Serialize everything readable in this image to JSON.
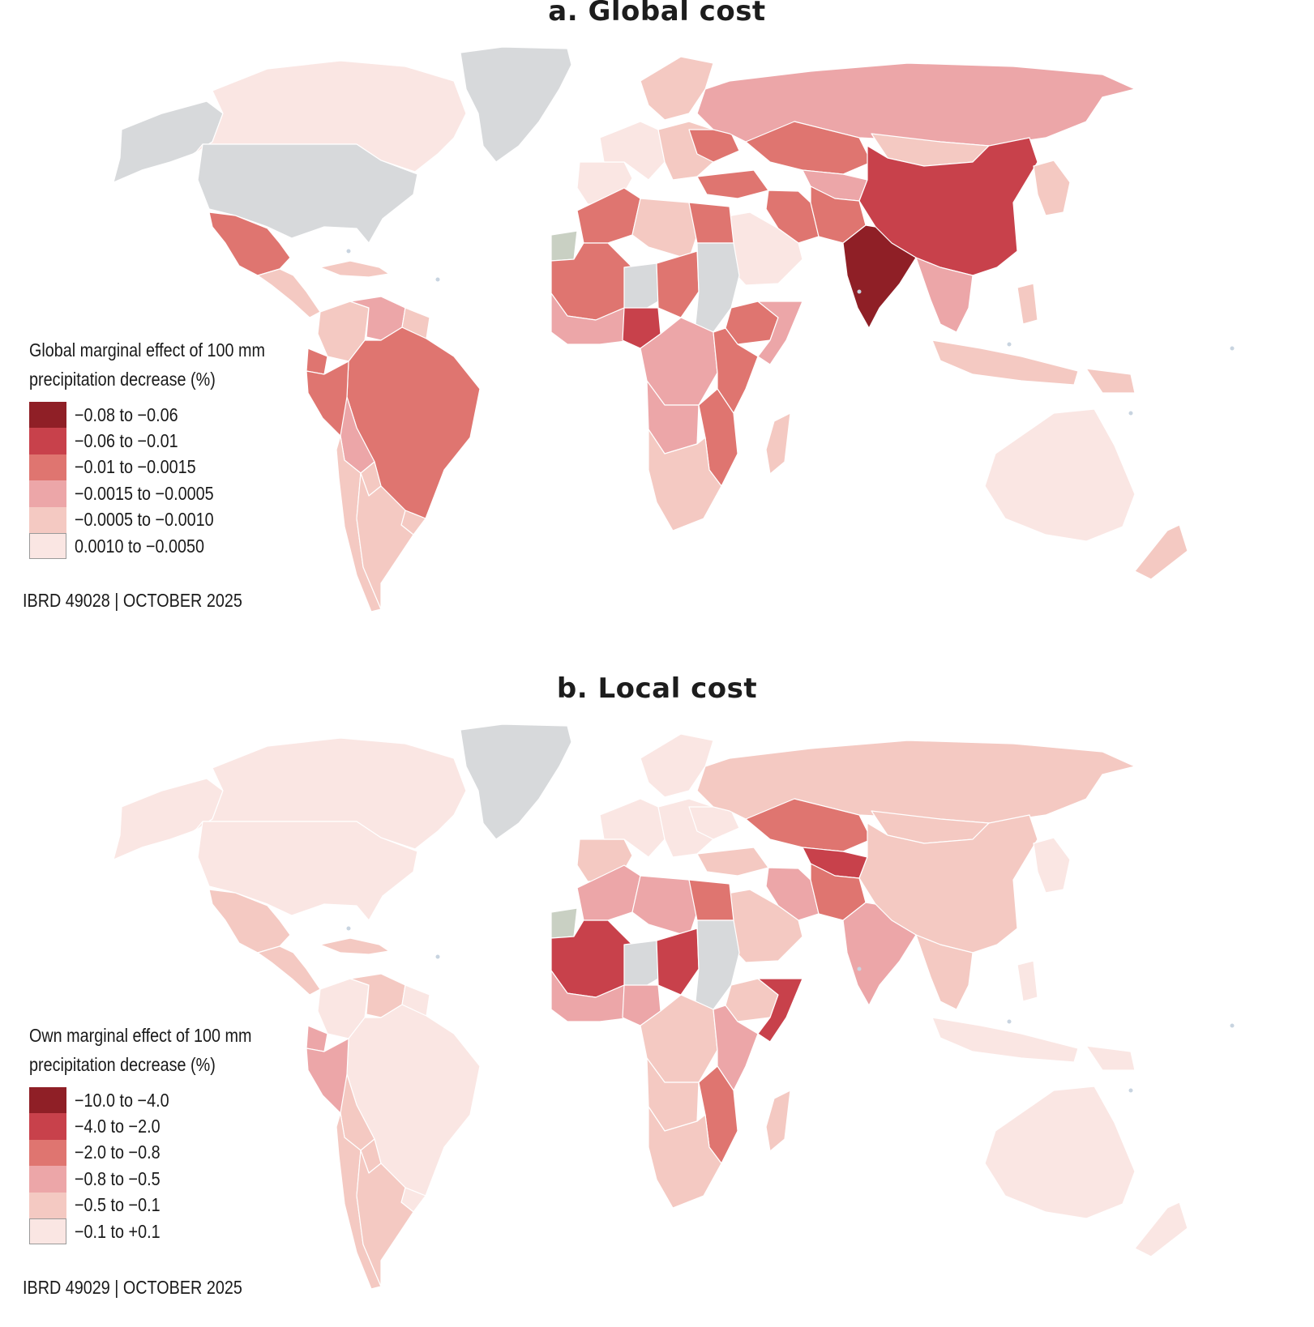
{
  "panels": [
    {
      "title": "a. Global cost",
      "legend": {
        "title_line1": "Global marginal effect of 100 mm",
        "title_line2": "precipitation decrease (%)",
        "classes": [
          {
            "label": "−0.08 to −0.06",
            "color": "#8f1f26"
          },
          {
            "label": "−0.06 to −0.01",
            "color": "#c8414b"
          },
          {
            "label": "−0.01 to −0.0015",
            "color": "#df7570"
          },
          {
            "label": "−0.0015 to −0.0005",
            "color": "#eca6a8"
          },
          {
            "label": "−0.0005 to −0.0010",
            "color": "#f4c9c2"
          },
          {
            "label": "0.0010 to −0.0050",
            "color": "#fae6e3"
          }
        ]
      },
      "credit": "IBRD 49028  |  OCTOBER 2025",
      "no_data_color": "#d7d9db",
      "regions": {
        "greenland": "nodata",
        "canada": "c6",
        "usa": "nodata",
        "alaska": "nodata",
        "mexico": "c3",
        "central_america": "c5",
        "caribbean": "c5",
        "colombia": "c5",
        "venezuela": "c4",
        "guianas": "c5",
        "brazil": "c3",
        "peru": "c3",
        "bolivia": "c4",
        "paraguay": "c5",
        "chile": "c5",
        "argentina": "c5",
        "uruguay": "c5",
        "ecuador": "c3",
        "western_europe": "c6",
        "scandinavia": "c5",
        "eastern_europe": "c5",
        "iberia": "c6",
        "ukraine": "c3",
        "turkey": "c3",
        "russia": "c4",
        "kazakhstan": "c3",
        "mongolia": "c5",
        "china": "c2",
        "korea_japan": "c5",
        "iran": "c3",
        "arabia": "c6",
        "central_asia": "c4",
        "afghan_pak": "c3",
        "india": "c1",
        "southeast_asia": "c4",
        "indonesia": "c5",
        "philippines": "c5",
        "png": "c5",
        "australia": "c6",
        "new_zealand": "c5",
        "maghreb": "c3",
        "libya": "c5",
        "egypt": "c3",
        "mauritania_mali": "c3",
        "west_africa": "c4",
        "nigeria": "c2",
        "niger": "nodata",
        "chad": "c3",
        "sudan": "nodata",
        "ethiopia": "c3",
        "horn": "c4",
        "central_africa": "c4",
        "east_africa": "c3",
        "angola": "c4",
        "southern_africa": "c5",
        "mozambique": "c3",
        "madagascar": "c5",
        "western_sahara": "sahara"
      }
    },
    {
      "title": "b. Local cost",
      "legend": {
        "title_line1": "Own marginal effect of 100 mm",
        "title_line2": "precipitation decrease (%)",
        "classes": [
          {
            "label": "−10.0 to −4.0",
            "color": "#8f1f26"
          },
          {
            "label": "−4.0 to −2.0",
            "color": "#c8414b"
          },
          {
            "label": "−2.0 to −0.8",
            "color": "#df7570"
          },
          {
            "label": "−0.8 to −0.5",
            "color": "#eca6a8"
          },
          {
            "label": "−0.5 to −0.1",
            "color": "#f4c9c2"
          },
          {
            "label": "−0.1 to +0.1",
            "color": "#fae6e3"
          }
        ]
      },
      "credit": "IBRD 49029  |  OCTOBER 2025",
      "no_data_color": "#d7d9db",
      "regions": {
        "greenland": "nodata",
        "canada": "c6",
        "usa": "c6",
        "alaska": "c6",
        "mexico": "c5",
        "central_america": "c5",
        "caribbean": "c5",
        "colombia": "c6",
        "venezuela": "c5",
        "guianas": "c6",
        "brazil": "c6",
        "peru": "c4",
        "bolivia": "c5",
        "paraguay": "c5",
        "chile": "c5",
        "argentina": "c5",
        "uruguay": "c6",
        "ecuador": "c4",
        "western_europe": "c6",
        "scandinavia": "c6",
        "eastern_europe": "c6",
        "iberia": "c5",
        "ukraine": "c6",
        "turkey": "c5",
        "russia": "c5",
        "kazakhstan": "c3",
        "mongolia": "c5",
        "china": "c5",
        "korea_japan": "c6",
        "iran": "c4",
        "arabia": "c5",
        "central_asia": "c2",
        "afghan_pak": "c3",
        "india": "c4",
        "southeast_asia": "c5",
        "indonesia": "c6",
        "philippines": "c6",
        "png": "c6",
        "australia": "c6",
        "new_zealand": "c6",
        "maghreb": "c4",
        "libya": "c4",
        "egypt": "c3",
        "mauritania_mali": "c2",
        "west_africa": "c4",
        "nigeria": "c4",
        "niger": "nodata",
        "chad": "c2",
        "sudan": "nodata",
        "ethiopia": "c5",
        "horn": "c2",
        "central_africa": "c5",
        "east_africa": "c4",
        "angola": "c5",
        "southern_africa": "c5",
        "mozambique": "c3",
        "madagascar": "c5",
        "western_sahara": "sahara"
      }
    }
  ]
}
